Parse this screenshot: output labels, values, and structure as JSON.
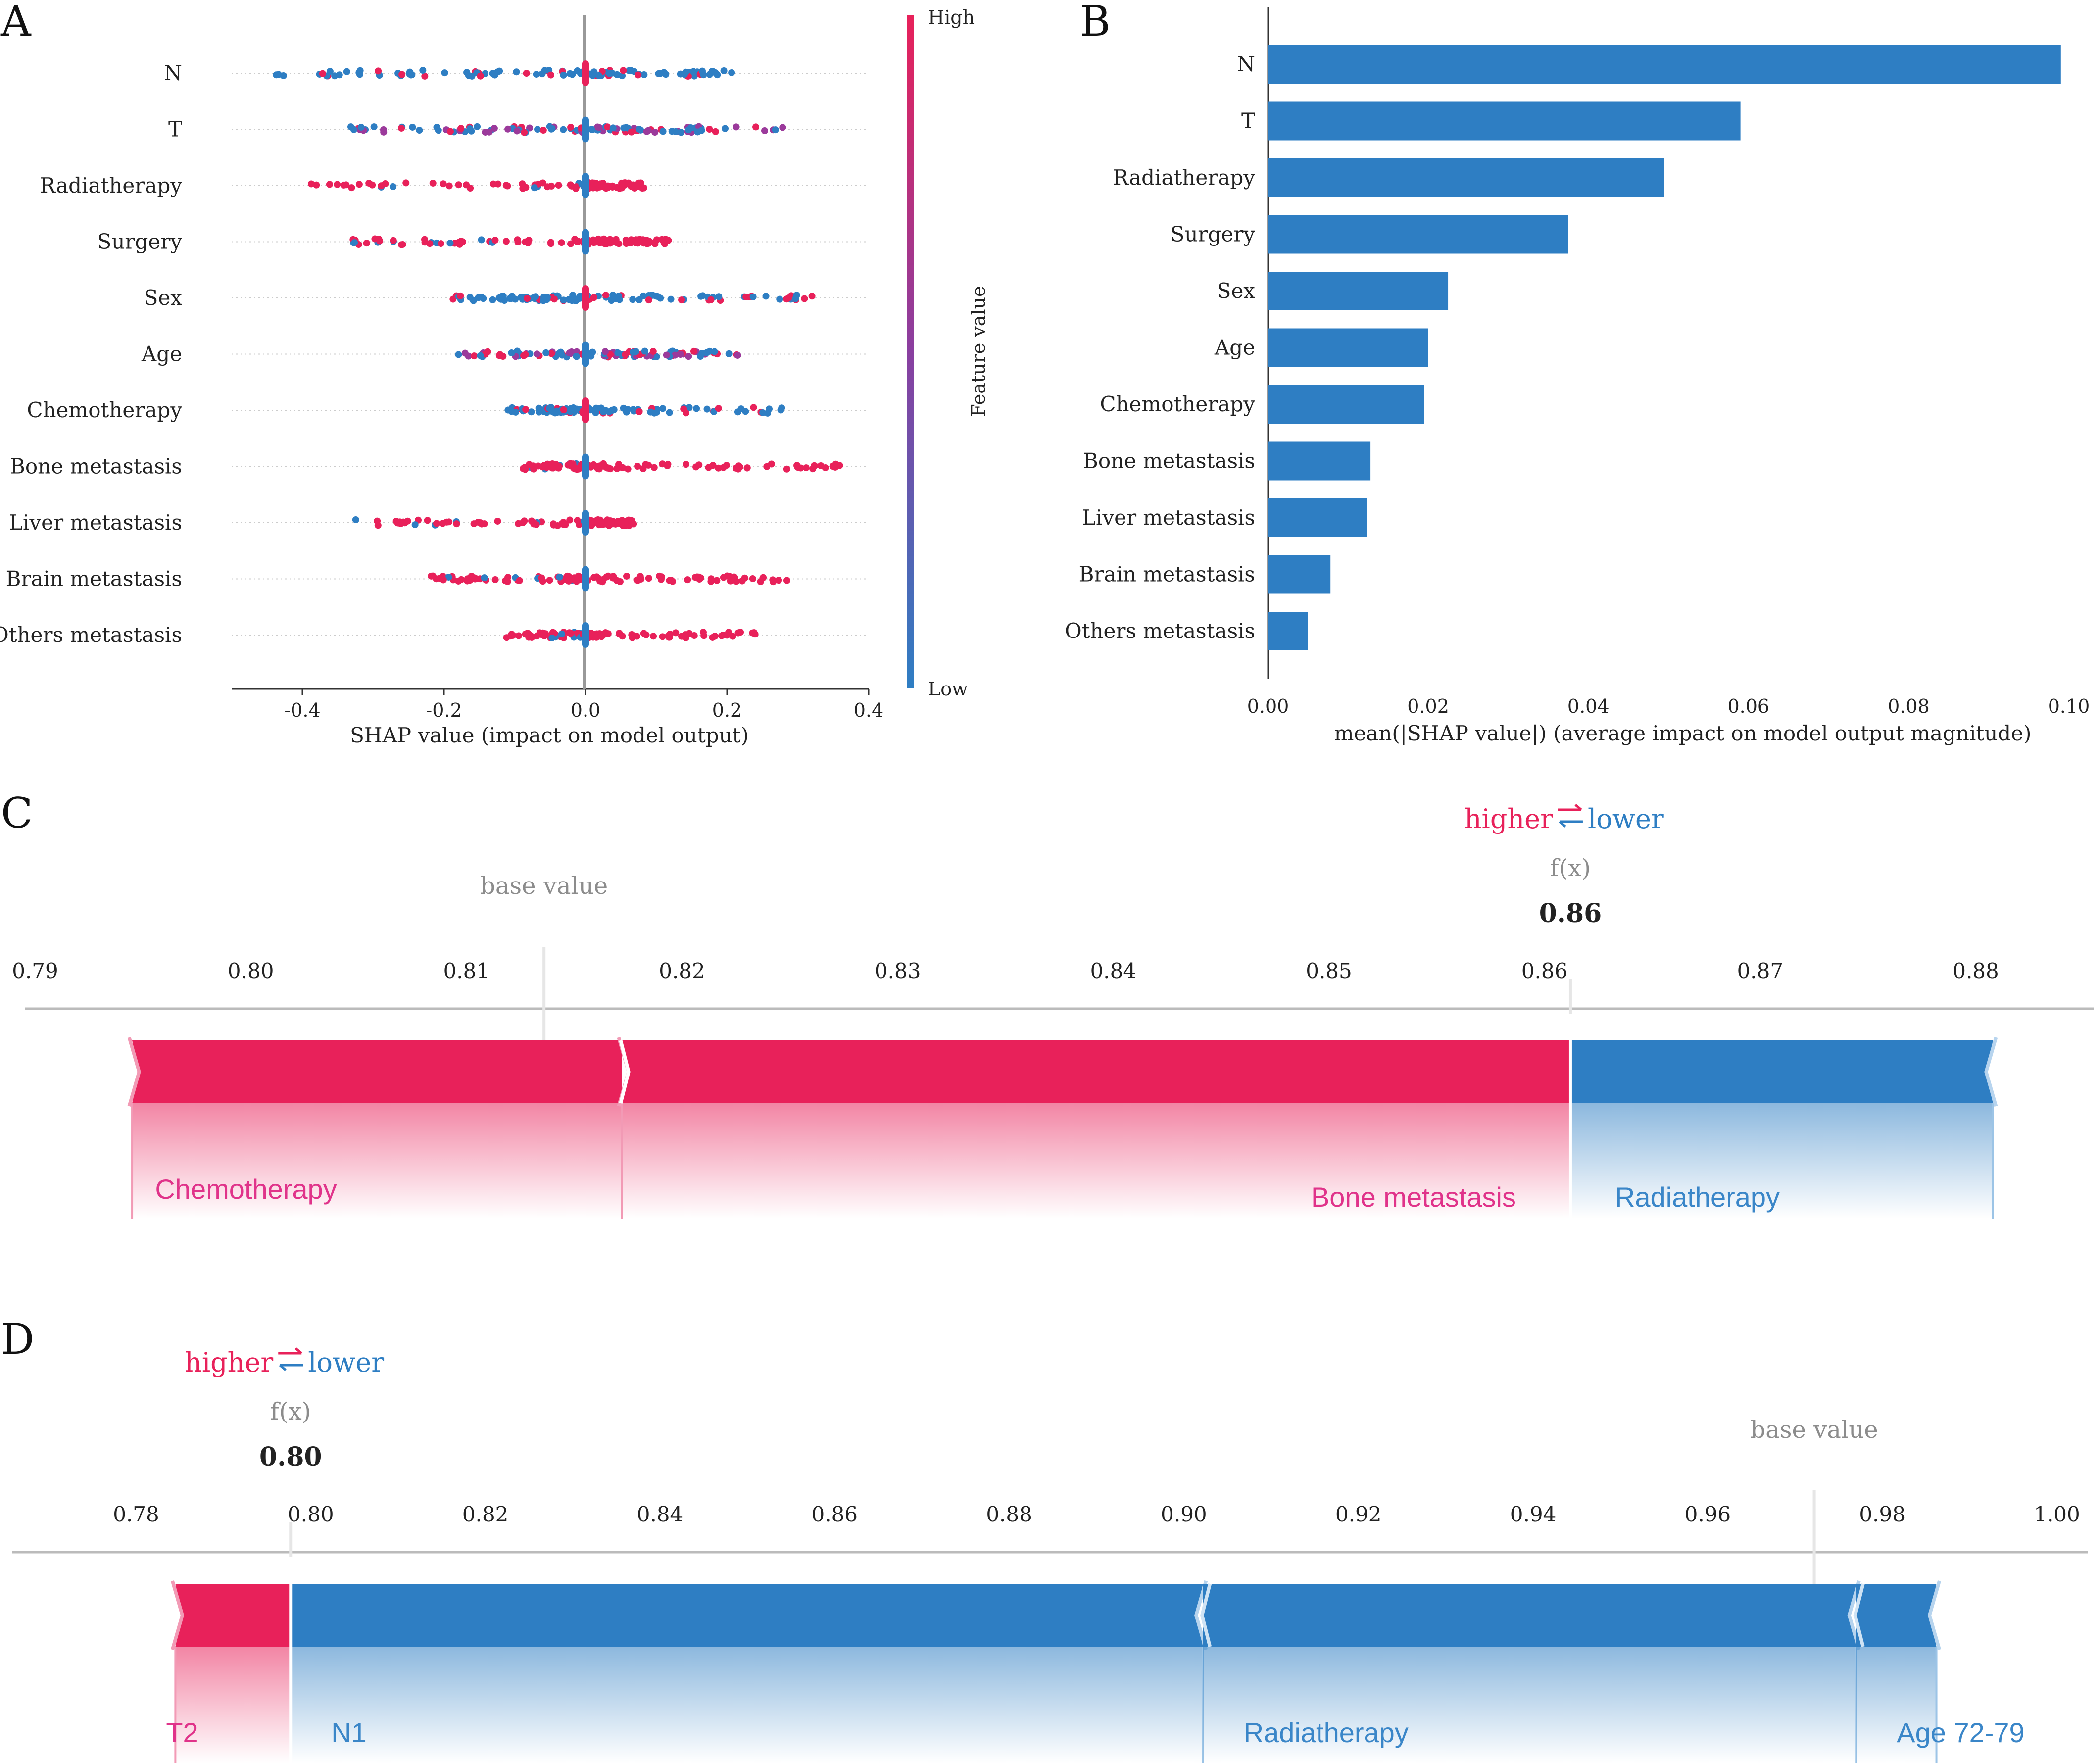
{
  "colors": {
    "red": "#e8215a",
    "blue": "#2e7ec3",
    "pink_label": "#e0338a",
    "blue_label": "#3a86c8",
    "gray_text": "#8c8c8c",
    "axis": "#333333"
  },
  "chart_data": [
    {
      "panel": "A",
      "type": "scatter",
      "title": "",
      "xlabel": "SHAP value (impact on model output)",
      "ylabel": "",
      "xlim": [
        -0.5,
        0.4
      ],
      "xticks": [
        -0.4,
        -0.2,
        0.0,
        0.2,
        0.4
      ],
      "xtick_labels": [
        "-0.4",
        "-0.2",
        "0.0",
        "0.2",
        "0.4"
      ],
      "colorbar": {
        "label": "Feature value",
        "high": "High",
        "low": "Low"
      },
      "features": [
        {
          "name": "N",
          "min": -0.44,
          "max": 0.21,
          "dominant": "low"
        },
        {
          "name": "T",
          "min": -0.35,
          "max": 0.28,
          "dominant": "mixed"
        },
        {
          "name": "Radiatherapy",
          "min": -0.46,
          "max": 0.09,
          "dominant": "high"
        },
        {
          "name": "Surgery",
          "min": -0.33,
          "max": 0.12,
          "dominant": "high"
        },
        {
          "name": "Sex",
          "min": -0.19,
          "max": 0.32,
          "dominant": "low"
        },
        {
          "name": "Age",
          "min": -0.18,
          "max": 0.23,
          "dominant": "mixed"
        },
        {
          "name": "Chemotherapy",
          "min": -0.11,
          "max": 0.28,
          "dominant": "low"
        },
        {
          "name": "Bone  metastasis",
          "min": -0.09,
          "max": 0.36,
          "dominant": "high"
        },
        {
          "name": "Liver  metastasis",
          "min": -0.33,
          "max": 0.07,
          "dominant": "high"
        },
        {
          "name": "Brain  metastasis",
          "min": -0.22,
          "max": 0.29,
          "dominant": "high"
        },
        {
          "name": "Others  metastasis",
          "min": -0.12,
          "max": 0.25,
          "dominant": "high"
        }
      ]
    },
    {
      "panel": "B",
      "type": "bar",
      "title": "",
      "xlabel": "mean(|SHAP value|) (average impact on model output magnitude)",
      "ylabel": "",
      "xlim": [
        0.0,
        0.1
      ],
      "xticks": [
        0.0,
        0.02,
        0.04,
        0.06,
        0.08,
        0.1
      ],
      "xtick_labels": [
        "0.00",
        "0.02",
        "0.04",
        "0.06",
        "0.08",
        "0.10"
      ],
      "categories": [
        "N",
        "T",
        "Radiatherapy",
        "Surgery",
        "Sex",
        "Age",
        "Chemotherapy",
        "Bone  metastasis",
        "Liver  metastasis",
        "Brain  metastasis",
        "Others  metastasis"
      ],
      "values": [
        0.099,
        0.059,
        0.0495,
        0.0375,
        0.0225,
        0.02,
        0.0195,
        0.0128,
        0.0124,
        0.0078,
        0.005
      ]
    },
    {
      "panel": "C",
      "type": "force",
      "xlim": [
        0.79,
        0.88
      ],
      "xticks": [
        0.79,
        0.8,
        0.81,
        0.82,
        0.83,
        0.84,
        0.85,
        0.86,
        0.87,
        0.88
      ],
      "xtick_labels": [
        "0.79",
        "0.80",
        "0.81",
        "0.82",
        "0.83",
        "0.84",
        "0.85",
        "0.86",
        "0.87",
        "0.88"
      ],
      "base_value": 0.8136,
      "base_label": "base value",
      "fx_label": "f(x)",
      "fx_value": 0.8612,
      "fx_text": "0.86",
      "higher": "higher",
      "lower": "lower",
      "positive": [
        {
          "label": "Chemotherapy",
          "start": 0.7945,
          "end": 0.8172
        },
        {
          "label": "Bone metastasis",
          "start": 0.8172,
          "end": 0.8612
        }
      ],
      "negative": [
        {
          "label": "Radiatherapy",
          "start": 0.8612,
          "end": 0.8808
        }
      ]
    },
    {
      "panel": "D",
      "type": "force",
      "xlim": [
        0.78,
        1.0
      ],
      "xticks": [
        0.78,
        0.8,
        0.82,
        0.84,
        0.86,
        0.88,
        0.9,
        0.92,
        0.94,
        0.96,
        0.98,
        1.0
      ],
      "xtick_labels": [
        "0.78",
        "0.80",
        "0.82",
        "0.84",
        "0.86",
        "0.88",
        "0.90",
        "0.92",
        "0.94",
        "0.96",
        "0.98",
        "1.00"
      ],
      "base_value": 0.9722,
      "base_label": "base value",
      "fx_label": "f(x)",
      "fx_value": 0.7977,
      "fx_text": "0.80",
      "higher": "higher",
      "lower": "lower",
      "positive": [
        {
          "label": "T2",
          "start": 0.7845,
          "end": 0.7977
        }
      ],
      "negative": [
        {
          "label": "N1",
          "start": 0.7977,
          "end": 0.9022
        },
        {
          "label": "Radiatherapy",
          "start": 0.9022,
          "end": 0.977
        },
        {
          "label": "Age 72-79",
          "start": 0.977,
          "end": 0.9862
        }
      ]
    }
  ],
  "panels": {
    "a": "A",
    "b": "B",
    "c": "C",
    "d": "D"
  }
}
